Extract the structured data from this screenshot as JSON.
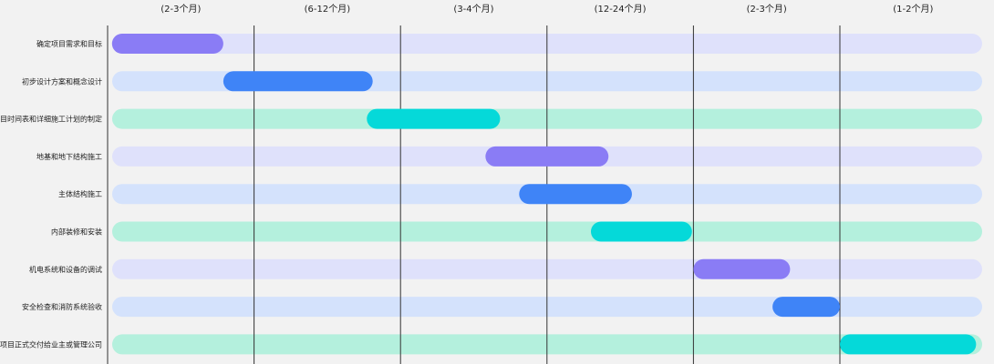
{
  "chart_data": {
    "type": "gantt",
    "phases": [
      "(2-3个月)",
      "(6-12个月)",
      "(3-4个月)",
      "(12-24个月)",
      "(2-3个月)",
      "(1-2个月)"
    ],
    "tasks": [
      {
        "name": "确定项目需求和目标",
        "start": 0.03,
        "end": 0.79
      },
      {
        "name": "初步设计方案和概念设计",
        "start": 0.79,
        "end": 1.81
      },
      {
        "name": "项目时间表和详细施工计划的制定",
        "start": 1.77,
        "end": 2.68
      },
      {
        "name": "地基和地下结构施工",
        "start": 2.58,
        "end": 3.42
      },
      {
        "name": "主体结构施工",
        "start": 2.81,
        "end": 3.58
      },
      {
        "name": "内部装修和安装",
        "start": 3.3,
        "end": 3.99
      },
      {
        "name": "机电系统和设备的调试",
        "start": 4.0,
        "end": 4.66
      },
      {
        "name": "安全检查和消防系统验收",
        "start": 4.54,
        "end": 5.0
      },
      {
        "name": "项目正式交付给业主或管理公司",
        "start": 5.0,
        "end": 5.93
      }
    ],
    "colors": {
      "bar": [
        "#8a7cf5",
        "#3f84f7",
        "#05d9d9"
      ],
      "track": [
        "#dfe1fb",
        "#d4e2fc",
        "#b4f0dd"
      ],
      "grid": "#333333",
      "background": "#f2f2f2"
    }
  }
}
